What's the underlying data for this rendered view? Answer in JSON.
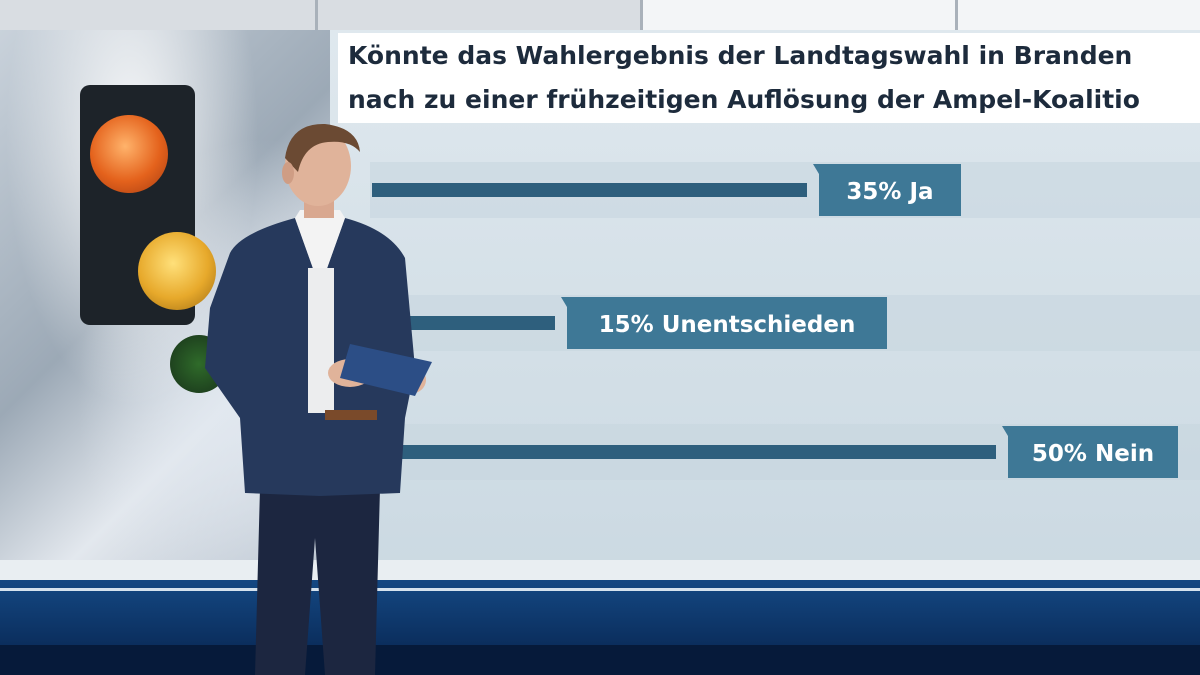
{
  "broadcast": {
    "title_line1": "Könnte das Wahlergebnis der Landtagswahl in Branden",
    "title_line2": "nach zu einer frühzeitigen Auflösung der Ampel-Koalitio"
  },
  "colors": {
    "bar": "#2e5f7d",
    "label_bg": "#3e7896",
    "label_text": "#ffffff",
    "track": "#c7d5de"
  },
  "chart_data": {
    "type": "bar",
    "orientation": "horizontal",
    "title": "Könnte das Wahlergebnis der Landtagswahl in Branden nach zu einer frühzeitigen Auflösung der Ampel-Koalitio",
    "categories": [
      "Ja",
      "Unentschieden",
      "Nein"
    ],
    "values": [
      35,
      15,
      50
    ],
    "unit": "%",
    "labels": [
      "35% Ja",
      "15% Unentschieden",
      "50% Nein"
    ],
    "xlim": [
      0,
      100
    ]
  }
}
